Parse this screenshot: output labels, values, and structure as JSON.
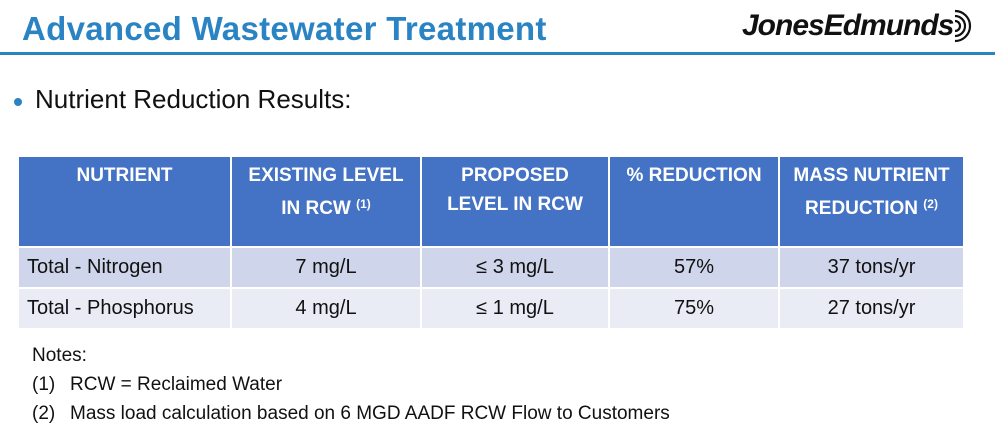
{
  "slide": {
    "title": "Advanced Wastewater Treatment",
    "logo_text": "JonesEdmunds",
    "bullet": "Nutrient Reduction Results:"
  },
  "table": {
    "headers": [
      {
        "text": "NUTRIENT",
        "sup": ""
      },
      {
        "text": "EXISTING LEVEL IN RCW",
        "sup": "(1)"
      },
      {
        "text": "PROPOSED LEVEL IN RCW",
        "sup": ""
      },
      {
        "text": "% REDUCTION",
        "sup": ""
      },
      {
        "text": "MASS NUTRIENT REDUCTION",
        "sup": "(2)"
      }
    ],
    "rows": [
      {
        "nutrient": "Total - Nitrogen",
        "existing": "7 mg/L",
        "proposed": "≤ 3 mg/L",
        "reduction": "57%",
        "mass": "37 tons/yr"
      },
      {
        "nutrient": "Total - Phosphorus",
        "existing": "4 mg/L",
        "proposed": "≤ 1 mg/L",
        "reduction": "75%",
        "mass": "27 tons/yr"
      }
    ]
  },
  "notes": {
    "heading": "Notes:",
    "items": [
      {
        "num": "(1)",
        "text": "RCW = Reclaimed Water"
      },
      {
        "num": "(2)",
        "text": "Mass load calculation based on 6 MGD AADF RCW Flow to Customers"
      }
    ]
  },
  "colors": {
    "accent": "#2a83c3",
    "header_bg": "#4472c4",
    "row_odd": "#cfd5ea",
    "row_even": "#e9ebf5"
  }
}
